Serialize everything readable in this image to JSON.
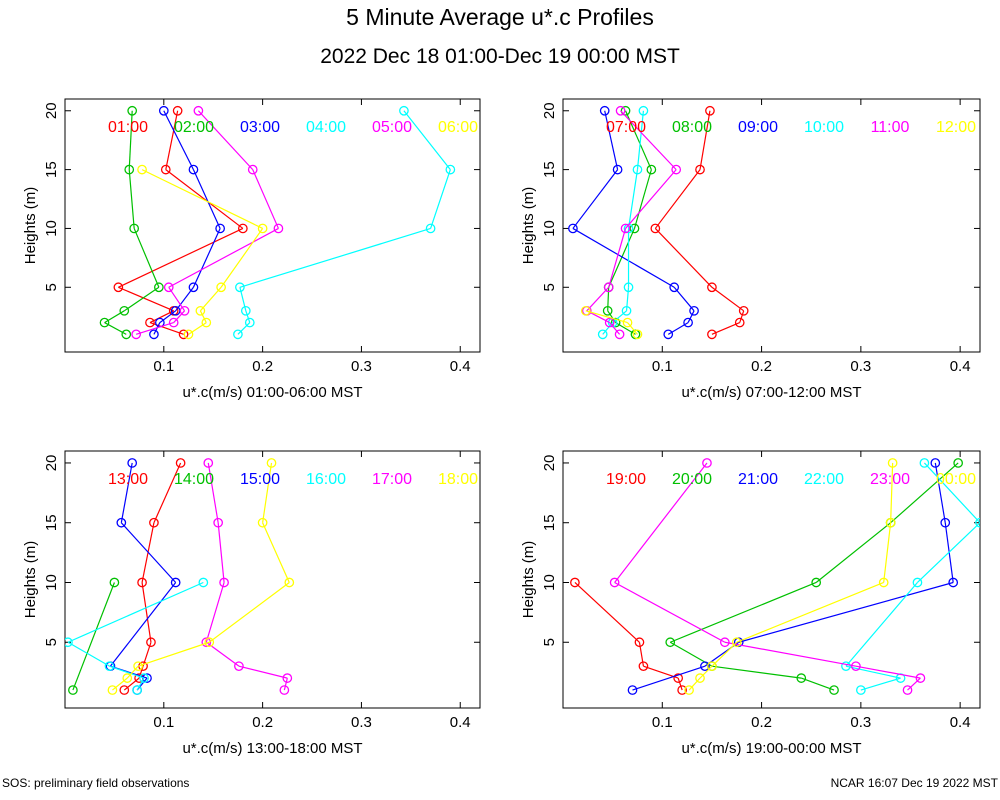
{
  "title": "5 Minute Average u*.c Profiles",
  "subtitle": "2022 Dec 18 01:00-Dec 19 00:00 MST",
  "footer_left": "SOS: preliminary field observations",
  "footer_right": "NCAR 16:07 Dec 19 2022 MST",
  "chart_data": [
    {
      "type": "line",
      "ylabel": "Heights (m)",
      "xlabel": "u*.c(m/s) 01:00-06:00 MST",
      "xlim": [
        0.0,
        0.42
      ],
      "ylim": [
        -0.5,
        21
      ],
      "xticks": [
        "0.1",
        "0.2",
        "0.3",
        "0.4"
      ],
      "yticks": [
        "5",
        "10",
        "15",
        "20"
      ],
      "heights": [
        1,
        2,
        3,
        5,
        10,
        15,
        20
      ],
      "series": [
        {
          "name": "01:00",
          "color": "#ff0000",
          "values": [
            0.12,
            0.086,
            0.11,
            0.054,
            0.18,
            0.102,
            0.114
          ]
        },
        {
          "name": "02:00",
          "color": "#00c000",
          "values": [
            0.062,
            0.04,
            0.06,
            0.095,
            0.07,
            0.065,
            0.068
          ]
        },
        {
          "name": "03:00",
          "color": "#0000ff",
          "values": [
            0.09,
            0.096,
            0.112,
            0.13,
            0.157,
            0.13,
            0.1
          ]
        },
        {
          "name": "04:00",
          "color": "#00ffff",
          "values": [
            0.175,
            0.187,
            0.183,
            0.177,
            0.37,
            0.39,
            0.343
          ]
        },
        {
          "name": "05:00",
          "color": "#ff00ff",
          "values": [
            0.072,
            0.11,
            0.121,
            0.105,
            0.216,
            0.19,
            0.135
          ]
        },
        {
          "name": "06:00",
          "color": "#ffff00",
          "values": [
            0.125,
            0.143,
            0.137,
            0.158,
            0.2,
            0.078,
            null
          ]
        }
      ]
    },
    {
      "type": "line",
      "ylabel": "Heights (m)",
      "xlabel": "u*.c(m/s) 07:00-12:00 MST",
      "xlim": [
        0.0,
        0.42
      ],
      "ylim": [
        -0.5,
        21
      ],
      "xticks": [
        "0.1",
        "0.2",
        "0.3",
        "0.4"
      ],
      "yticks": [
        "5",
        "10",
        "15",
        "20"
      ],
      "heights": [
        1,
        2,
        3,
        5,
        10,
        15,
        20
      ],
      "series": [
        {
          "name": "07:00",
          "color": "#ff0000",
          "values": [
            0.15,
            0.178,
            0.182,
            0.15,
            0.093,
            0.138,
            0.148
          ]
        },
        {
          "name": "08:00",
          "color": "#00c000",
          "values": [
            0.073,
            0.053,
            0.045,
            0.046,
            0.072,
            0.089,
            0.063
          ]
        },
        {
          "name": "09:00",
          "color": "#0000ff",
          "values": [
            0.106,
            0.126,
            0.132,
            0.112,
            0.01,
            0.055,
            0.042
          ]
        },
        {
          "name": "10:00",
          "color": "#00ffff",
          "values": [
            0.04,
            0.05,
            0.064,
            0.066,
            0.066,
            0.075,
            0.081
          ]
        },
        {
          "name": "11:00",
          "color": "#ff00ff",
          "values": [
            0.057,
            0.047,
            0.024,
            0.046,
            0.063,
            0.114,
            0.058
          ]
        },
        {
          "name": "12:00",
          "color": "#ffff00",
          "values": [
            0.075,
            0.065,
            0.023,
            null,
            null,
            null,
            null
          ]
        }
      ]
    },
    {
      "type": "line",
      "ylabel": "Heights (m)",
      "xlabel": "u*.c(m/s) 13:00-18:00 MST",
      "xlim": [
        0.0,
        0.42
      ],
      "ylim": [
        -0.5,
        21
      ],
      "xticks": [
        "0.1",
        "0.2",
        "0.3",
        "0.4"
      ],
      "yticks": [
        "5",
        "10",
        "15",
        "20"
      ],
      "heights": [
        1,
        2,
        3,
        5,
        10,
        15,
        20
      ],
      "series": [
        {
          "name": "13:00",
          "color": "#ff0000",
          "values": [
            0.06,
            0.075,
            0.079,
            0.087,
            0.078,
            0.09,
            0.117
          ]
        },
        {
          "name": "14:00",
          "color": "#00c000",
          "values": [
            0.008,
            null,
            null,
            null,
            0.05,
            null,
            null
          ]
        },
        {
          "name": "15:00",
          "color": "#0000ff",
          "values": [
            0.073,
            0.083,
            0.046,
            null,
            0.112,
            0.057,
            0.068
          ]
        },
        {
          "name": "16:00",
          "color": "#00ffff",
          "values": [
            0.073,
            0.08,
            0.045,
            0.003,
            0.14,
            null,
            null
          ]
        },
        {
          "name": "17:00",
          "color": "#ff00ff",
          "values": [
            0.222,
            0.225,
            0.176,
            0.143,
            0.161,
            0.155,
            0.145
          ]
        },
        {
          "name": "18:00",
          "color": "#ffff00",
          "values": [
            0.048,
            0.063,
            0.074,
            0.146,
            0.227,
            0.2,
            0.209
          ]
        }
      ]
    },
    {
      "type": "line",
      "ylabel": "Heights (m)",
      "xlabel": "u*.c(m/s) 19:00-00:00 MST",
      "xlim": [
        0.0,
        0.42
      ],
      "ylim": [
        -0.5,
        21
      ],
      "xticks": [
        "0.1",
        "0.2",
        "0.3",
        "0.4"
      ],
      "yticks": [
        "5",
        "10",
        "15",
        "20"
      ],
      "heights": [
        1,
        2,
        3,
        5,
        10,
        15,
        20
      ],
      "series": [
        {
          "name": "19:00",
          "color": "#ff0000",
          "values": [
            0.12,
            0.116,
            0.081,
            0.077,
            0.012,
            null,
            null
          ]
        },
        {
          "name": "20:00",
          "color": "#00c000",
          "values": [
            0.273,
            0.24,
            0.15,
            0.108,
            0.255,
            0.33,
            0.398
          ]
        },
        {
          "name": "21:00",
          "color": "#0000ff",
          "values": [
            0.07,
            null,
            0.143,
            0.177,
            0.393,
            0.385,
            0.375
          ]
        },
        {
          "name": "22:00",
          "color": "#00ffff",
          "values": [
            0.3,
            0.34,
            0.285,
            null,
            0.357,
            0.42,
            0.364
          ]
        },
        {
          "name": "23:00",
          "color": "#ff00ff",
          "values": [
            0.347,
            0.36,
            0.295,
            0.163,
            0.052,
            null,
            0.145
          ]
        },
        {
          "name": "00:00",
          "color": "#ffff00",
          "values": [
            0.127,
            0.138,
            0.15,
            0.175,
            0.323,
            0.33,
            0.332
          ]
        }
      ]
    }
  ]
}
